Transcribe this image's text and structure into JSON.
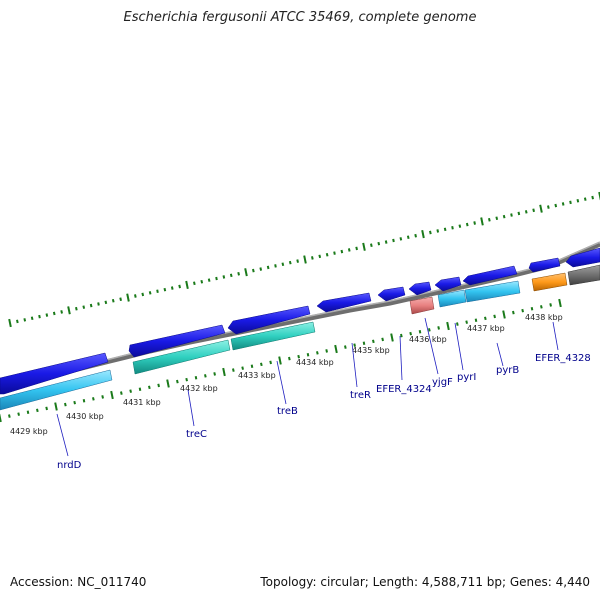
{
  "header": {
    "title": "Escherichia fergusonii ATCC 35469, complete genome"
  },
  "footer": {
    "accession": "Accession: NC_011740",
    "summary": "Topology: circular; Length: 4,588,711 bp; Genes: 4,440"
  },
  "colors": {
    "backbone": "#8c8c8c",
    "cds_forward": "#1a1ae6",
    "gene_forward": "#33c4f0",
    "gene_reverse": "#30d0c0",
    "rrna_pink": "#e88080",
    "orange_feature": "#ff9a1a",
    "grey_feature": "#707070",
    "tick": "#1a7a1a",
    "label": "#00008b"
  },
  "map": {
    "ticks": [
      {
        "pos": 4429,
        "label": "4429 kbp"
      },
      {
        "pos": 4430,
        "label": "4430 kbp"
      },
      {
        "pos": 4431,
        "label": "4431 kbp"
      },
      {
        "pos": 4432,
        "label": "4432 kbp"
      },
      {
        "pos": 4433,
        "label": "4433 kbp"
      },
      {
        "pos": 4434,
        "label": "4434 kbp"
      },
      {
        "pos": 4435,
        "label": "4435 kbp"
      },
      {
        "pos": 4436,
        "label": "4436 kbp"
      },
      {
        "pos": 4437,
        "label": "4437 kbp"
      },
      {
        "pos": 4438,
        "label": "4438 kbp"
      }
    ],
    "gene_labels": [
      "nrdD",
      "treC",
      "treB",
      "treR",
      "EFER_4324",
      "yjgF",
      "pyrI",
      "pyrB",
      "EFER_4328"
    ]
  }
}
